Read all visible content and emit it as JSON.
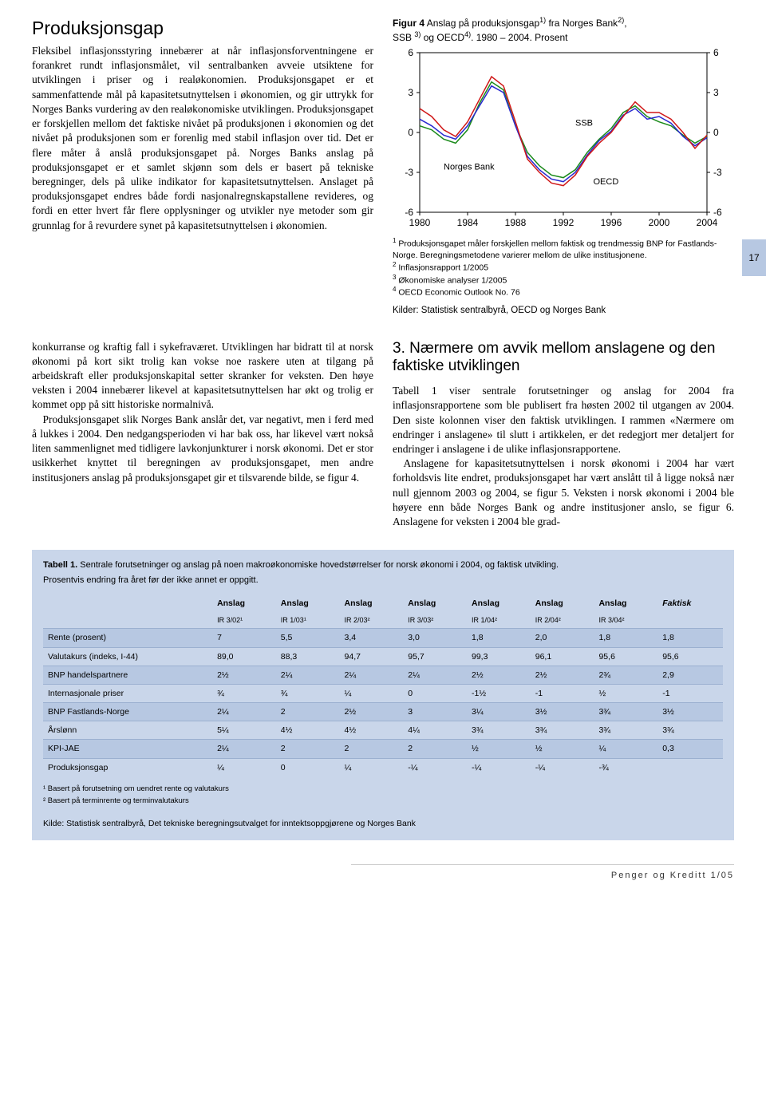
{
  "topLeft": {
    "heading": "Produksjonsgap",
    "para": "Fleksibel inflasjonsstyring innebærer at når inflasjonsforventningene er forankret rundt inflasjonsmålet, vil sentralbanken avveie utsiktene for utviklingen i priser og i realøkonomien. Produksjonsgapet er et sammenfattende mål på kapasitetsutnyttelsen i økonomien, og gir uttrykk for Norges Banks vurdering av den realøkonomiske utviklingen. Produksjonsgapet er forskjellen mellom det faktiske nivået på produksjonen i økonomien og det nivået på produksjonen som er forenlig med stabil inflasjon over tid. Det er flere måter å anslå produksjonsgapet på. Norges Banks anslag på produksjonsgapet er et samlet skjønn som dels er basert på tekniske beregninger, dels på ulike indikator for kapasitetsutnyttelsen. Anslaget på produksjonsgapet endres både fordi nasjonalregnskapstallene revideres, og fordi en etter hvert får flere opplysninger og utvikler nye metoder som gir grunnlag for å revurdere synet på kapasitetsutnyttelsen i økonomien."
  },
  "figure4": {
    "titlePrefix": "Figur 4",
    "titleRest": " Anslag på produksjonsgap",
    "titleSuffix": " fra Norges Bank",
    "titleLine2": "SSB ",
    "titleLine2b": " og OECD",
    "titleEnd": ". 1980 – 2004. Prosent",
    "type": "line",
    "xLabels": [
      "1980",
      "1984",
      "1988",
      "1992",
      "1996",
      "2000",
      "2004"
    ],
    "yTicks": [
      -6,
      -3,
      0,
      3,
      6
    ],
    "series": {
      "ssb": {
        "label": "SSB",
        "color": "#1a8a1a",
        "points": [
          [
            1980,
            0.5
          ],
          [
            1981,
            0.2
          ],
          [
            1982,
            -0.5
          ],
          [
            1983,
            -0.8
          ],
          [
            1984,
            0.2
          ],
          [
            1985,
            2.2
          ],
          [
            1986,
            3.8
          ],
          [
            1987,
            3.2
          ],
          [
            1988,
            0.5
          ],
          [
            1989,
            -1.5
          ],
          [
            1990,
            -2.5
          ],
          [
            1991,
            -3.2
          ],
          [
            1992,
            -3.4
          ],
          [
            1993,
            -2.8
          ],
          [
            1994,
            -1.5
          ],
          [
            1995,
            -0.5
          ],
          [
            1996,
            0.3
          ],
          [
            1997,
            1.5
          ],
          [
            1998,
            2.0
          ],
          [
            1999,
            1.2
          ],
          [
            2000,
            0.8
          ],
          [
            2001,
            0.5
          ],
          [
            2002,
            -0.2
          ],
          [
            2003,
            -0.8
          ],
          [
            2004,
            -0.3
          ]
        ]
      },
      "norgesBank": {
        "label": "Norges Bank",
        "color": "#d01818",
        "points": [
          [
            1980,
            1.8
          ],
          [
            1981,
            1.2
          ],
          [
            1982,
            0.2
          ],
          [
            1983,
            -0.3
          ],
          [
            1984,
            0.8
          ],
          [
            1985,
            2.5
          ],
          [
            1986,
            4.2
          ],
          [
            1987,
            3.5
          ],
          [
            1988,
            0.8
          ],
          [
            1989,
            -2.0
          ],
          [
            1990,
            -3.0
          ],
          [
            1991,
            -3.8
          ],
          [
            1992,
            -4.0
          ],
          [
            1993,
            -3.2
          ],
          [
            1994,
            -1.8
          ],
          [
            1995,
            -0.8
          ],
          [
            1996,
            0.0
          ],
          [
            1997,
            1.2
          ],
          [
            1998,
            2.3
          ],
          [
            1999,
            1.5
          ],
          [
            2000,
            1.5
          ],
          [
            2001,
            1.0
          ],
          [
            2002,
            0.0
          ],
          [
            2003,
            -1.2
          ],
          [
            2004,
            -0.2
          ]
        ]
      },
      "oecd": {
        "label": "OECD",
        "color": "#2828d0",
        "points": [
          [
            1980,
            1.0
          ],
          [
            1981,
            0.5
          ],
          [
            1982,
            -0.2
          ],
          [
            1983,
            -0.5
          ],
          [
            1984,
            0.5
          ],
          [
            1985,
            2.0
          ],
          [
            1986,
            3.5
          ],
          [
            1987,
            3.0
          ],
          [
            1988,
            0.5
          ],
          [
            1989,
            -1.8
          ],
          [
            1990,
            -2.8
          ],
          [
            1991,
            -3.5
          ],
          [
            1992,
            -3.7
          ],
          [
            1993,
            -3.0
          ],
          [
            1994,
            -1.7
          ],
          [
            1995,
            -0.6
          ],
          [
            1996,
            0.1
          ],
          [
            1997,
            1.3
          ],
          [
            1998,
            1.8
          ],
          [
            1999,
            1.0
          ],
          [
            2000,
            1.2
          ],
          [
            2001,
            0.7
          ],
          [
            2002,
            -0.3
          ],
          [
            2003,
            -1.0
          ],
          [
            2004,
            -0.4
          ]
        ]
      }
    },
    "footnote1": "Produksjonsgapet måler forskjellen mellom faktisk og trendmessig BNP for Fastlands-Norge. Beregningsmetodene varierer mellom de ulike institusjonene.",
    "footnote2": "Inflasjonsrapport 1/2005",
    "footnote3": "Økonomiske analyser 1/2005",
    "footnote4": "OECD Economic Outlook No. 76",
    "sources": "Kilder: Statistisk sentralbyrå, OECD og Norges Bank"
  },
  "pageMarker": "17",
  "midLeft": {
    "p1": "konkurranse og kraftig fall i sykefraværet. Utviklingen har bidratt til at norsk økonomi på kort sikt trolig kan vokse noe raskere uten at tilgang på arbeidskraft eller produksjonskapital setter skranker for veksten. Den høye veksten i 2004 innebærer likevel at kapasitetsutnyttelsen har økt og trolig er kommet opp på sitt historiske normalnivå.",
    "p2": "Produksjonsgapet slik Norges Bank anslår det, var negativt, men i ferd med å lukkes i 2004. Den nedgangsperioden vi har bak oss, har likevel vært nokså liten sammenlignet med tidligere lavkonjunkturer i norsk økonomi. Det er stor usikkerhet knyttet til beregningen av produksjonsgapet, men andre institusjoners anslag på produksjonsgapet gir et tilsvarende bilde, se figur 4."
  },
  "midRight": {
    "heading": "3. Nærmere om avvik mellom anslagene og den faktiske utviklingen",
    "p1": "Tabell 1 viser sentrale forutsetninger og anslag for 2004 fra inflasjonsrapportene som ble publisert fra høsten 2002 til utgangen av 2004. Den siste kolonnen viser den faktisk utviklingen. I rammen «Nærmere om endringer i anslagene» til slutt i artikkelen, er det redegjort mer detaljert for endringer i anslagene i de ulike inflasjonsrapportene.",
    "p2": "Anslagene for kapasitetsutnyttelsen i norsk økonomi i 2004 har vært forholdsvis lite endret, produksjonsgapet har vært anslått til å ligge nokså nær null gjennom 2003 og 2004, se figur 5. Veksten i norsk økonomi i 2004 ble høyere enn både Norges Bank og andre institusjoner anslo, se figur 6. Anslagene for veksten i 2004 ble grad-"
  },
  "table": {
    "title": "Tabell 1. Sentrale forutsetninger og anslag på noen makroøkonomiske hovedstørrelser for norsk økonomi i 2004, og faktisk utvikling.",
    "subtitle": "Prosentvis endring fra året før der ikke annet er oppgitt.",
    "columns": [
      "",
      "Anslag",
      "Anslag",
      "Anslag",
      "Anslag",
      "Anslag",
      "Anslag",
      "Anslag",
      "Faktisk"
    ],
    "columns2": [
      "",
      "IR 3/02¹",
      "IR 1/03¹",
      "IR 2/03²",
      "IR 3/03²",
      "IR 1/04²",
      "IR 2/04²",
      "IR 3/04²",
      ""
    ],
    "rows": [
      {
        "label": "Rente (prosent)",
        "cells": [
          "7",
          "5,5",
          "3,4",
          "3,0",
          "1,8",
          "2,0",
          "1,8",
          "1,8"
        ],
        "alt": true
      },
      {
        "label": "Valutakurs (indeks, I-44)",
        "cells": [
          "89,0",
          "88,3",
          "94,7",
          "95,7",
          "99,3",
          "96,1",
          "95,6",
          "95,6"
        ],
        "alt": false
      },
      {
        "label": "BNP handelspartnere",
        "cells": [
          "2½",
          "2¼",
          "2¼",
          "2¼",
          "2½",
          "2½",
          "2¾",
          "2,9"
        ],
        "alt": true
      },
      {
        "label": "Internasjonale priser",
        "cells": [
          "¾",
          "¾",
          "¼",
          "0",
          "-1½",
          "-1",
          "½",
          "-1"
        ],
        "alt": false
      },
      {
        "label": "BNP Fastlands-Norge",
        "cells": [
          "2¼",
          "2",
          "2½",
          "3",
          "3¼",
          "3½",
          "3¾",
          "3½"
        ],
        "alt": true
      },
      {
        "label": "Årslønn",
        "cells": [
          "5¼",
          "4½",
          "4½",
          "4¼",
          "3¾",
          "3¾",
          "3¾",
          "3¾"
        ],
        "alt": false
      },
      {
        "label": "KPI-JAE",
        "cells": [
          "2¼",
          "2",
          "2",
          "2",
          "½",
          "½",
          "¼",
          "0,3"
        ],
        "alt": true
      },
      {
        "label": "Produksjonsgap",
        "cells": [
          "¼",
          "0",
          "¼",
          "-¼",
          "-¼",
          "-¼",
          "-¾",
          ""
        ],
        "alt": false
      }
    ],
    "foot1": "¹ Basert på forutsetning om uendret rente og valutakurs",
    "foot2": "² Basert på terminrente og terminvalutakurs",
    "source": "Kilde: Statistisk sentralbyrå, Det tekniske beregningsutvalget for inntektsoppgjørene og Norges Bank"
  },
  "footer": "Penger og Kreditt 1/05"
}
